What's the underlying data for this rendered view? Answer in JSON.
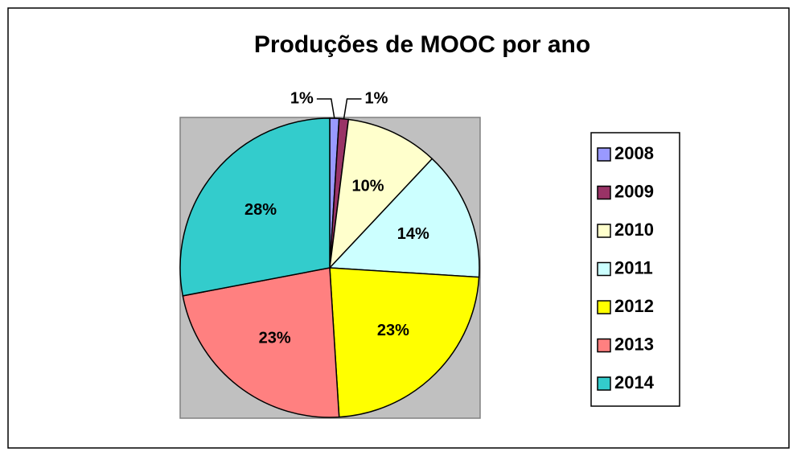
{
  "chart_data": {
    "type": "pie",
    "title": "Produções de MOOC por ano",
    "categories": [
      "2008",
      "2009",
      "2010",
      "2011",
      "2012",
      "2013",
      "2014"
    ],
    "values": [
      1,
      1,
      10,
      14,
      23,
      23,
      28
    ],
    "value_labels": [
      "1%",
      "1%",
      "10%",
      "14%",
      "23%",
      "23%",
      "28%"
    ],
    "colors": [
      "#9999ff",
      "#993366",
      "#ffffcc",
      "#ccffff",
      "#ffff00",
      "#ff8080",
      "#33cccc"
    ],
    "legend": "right"
  }
}
